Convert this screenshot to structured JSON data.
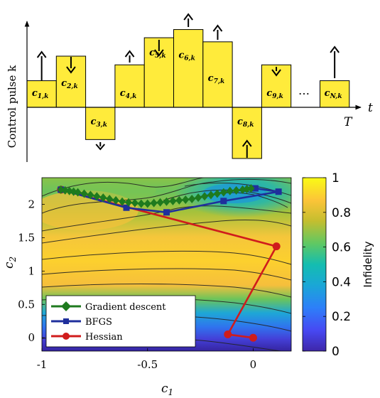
{
  "chart_data": [
    {
      "type": "bar",
      "ylabel": "Control pulse k",
      "xlabel": "t",
      "end_label": "T",
      "ellipsis": "…",
      "bars": [
        {
          "label_main": "c",
          "label_sub": "1,k",
          "value": 0.52,
          "arrow": "up"
        },
        {
          "label_main": "c",
          "label_sub": "2,k",
          "value": 1.0,
          "arrow": "down"
        },
        {
          "label_main": "c",
          "label_sub": "3,k",
          "value": -0.63,
          "arrow": "down"
        },
        {
          "label_main": "c",
          "label_sub": "4,k",
          "value": 0.83,
          "arrow": "up"
        },
        {
          "label_main": "c",
          "label_sub": "5,k",
          "value": 1.36,
          "arrow": "down"
        },
        {
          "label_main": "c",
          "label_sub": "6,k",
          "value": 1.52,
          "arrow": "up"
        },
        {
          "label_main": "c",
          "label_sub": "7,k",
          "value": 1.28,
          "arrow": "up"
        },
        {
          "label_main": "c",
          "label_sub": "8,k",
          "value": -1.0,
          "arrow": "up"
        },
        {
          "label_main": "c",
          "label_sub": "9,k",
          "value": 0.83,
          "arrow": "down"
        },
        {
          "label_main": "c",
          "label_sub": "N,k",
          "value": 0.52,
          "arrow": "up"
        }
      ],
      "colors": {
        "bar": "#ffeb3b"
      }
    },
    {
      "type": "heatmap",
      "xlabel": "c",
      "xlabel_sub": "1",
      "ylabel": "c",
      "ylabel_sub": "2",
      "xlim": [
        -1,
        0.18
      ],
      "ylim": [
        -0.2,
        2.4
      ],
      "xticks": [
        -1,
        -0.5,
        0
      ],
      "xtick_labels": [
        "-1",
        "-0.5",
        "0"
      ],
      "yticks": [
        0,
        0.5,
        1,
        1.5,
        2
      ],
      "ytick_labels": [
        "0",
        "0.5",
        "1",
        "1.5",
        "2"
      ],
      "colorbar": {
        "label": "Infidelity",
        "ticks": [
          0,
          0.2,
          0.4,
          0.6,
          0.8,
          1
        ],
        "tick_labels": [
          "0",
          "0.2",
          "0.4",
          "0.6",
          "0.8",
          "1"
        ]
      },
      "series": [
        {
          "name": "Gradient descent",
          "color": "#1e7a1e",
          "marker": "diamond",
          "x": [
            -0.91,
            -0.89,
            -0.87,
            -0.85,
            -0.83,
            -0.8,
            -0.77,
            -0.74,
            -0.71,
            -0.68,
            -0.65,
            -0.62,
            -0.59,
            -0.56,
            -0.53,
            -0.5,
            -0.47,
            -0.44,
            -0.41,
            -0.38,
            -0.35,
            -0.32,
            -0.29,
            -0.26,
            -0.23,
            -0.2,
            -0.17,
            -0.14,
            -0.11,
            -0.08,
            -0.05,
            -0.03,
            -0.01
          ],
          "y": [
            2.22,
            2.21,
            2.2,
            2.19,
            2.18,
            2.16,
            2.14,
            2.12,
            2.1,
            2.08,
            2.06,
            2.04,
            2.03,
            2.02,
            2.01,
            2.01,
            2.02,
            2.03,
            2.04,
            2.05,
            2.06,
            2.07,
            2.08,
            2.1,
            2.12,
            2.14,
            2.16,
            2.18,
            2.2,
            2.21,
            2.22,
            2.23,
            2.24
          ]
        },
        {
          "name": "BFGS",
          "color": "#1f2f9c",
          "marker": "square",
          "x": [
            -0.91,
            -0.6,
            -0.41,
            -0.14,
            0.12,
            0.01
          ],
          "y": [
            2.22,
            1.95,
            1.88,
            2.05,
            2.19,
            2.24
          ]
        },
        {
          "name": "Hessian",
          "color": "#d01c1c",
          "marker": "circle",
          "x": [
            -0.91,
            0.11,
            -0.12,
            0.0
          ],
          "y": [
            2.22,
            1.37,
            0.05,
            0.0
          ]
        }
      ]
    }
  ]
}
